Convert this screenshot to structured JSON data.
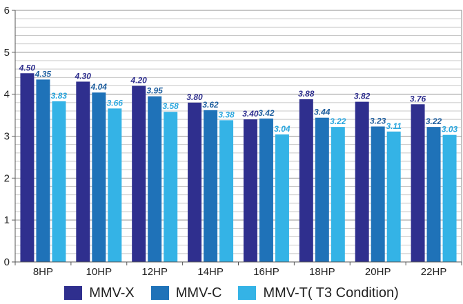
{
  "chart_data": {
    "type": "bar",
    "title": "",
    "xlabel": "",
    "ylabel": "",
    "ylim": [
      0,
      6
    ],
    "yticks": [
      "0",
      "1",
      "2",
      "3",
      "4",
      "5",
      "6"
    ],
    "grid": "horizontal",
    "legend_position": "bottom",
    "categories": [
      "8HP",
      "10HP",
      "12HP",
      "14HP",
      "16HP",
      "18HP",
      "20HP",
      "22HP"
    ],
    "series": [
      {
        "name": "MMV-X",
        "color": "#2f2f8e",
        "label_color": "#2f2f8e",
        "values": [
          4.5,
          4.3,
          4.2,
          3.8,
          3.4,
          3.88,
          3.82,
          3.76
        ],
        "labels": [
          "4.50",
          "4.30",
          "4.20",
          "3.80",
          "3.40",
          "3.88",
          "3.82",
          "3.76"
        ]
      },
      {
        "name": "MMV-C",
        "color": "#1f72b8",
        "label_color": "#1f5f9f",
        "values": [
          4.35,
          4.04,
          3.95,
          3.62,
          3.42,
          3.44,
          3.23,
          3.22
        ],
        "labels": [
          "4.35",
          "4.04",
          "3.95",
          "3.62",
          "3.42",
          "3.44",
          "3.23",
          "3.22"
        ]
      },
      {
        "name": "MMV-T( T3 Condition)",
        "color": "#34b3e6",
        "label_color": "#2aa7df",
        "values": [
          3.83,
          3.66,
          3.58,
          3.38,
          3.04,
          3.22,
          3.11,
          3.03
        ],
        "labels": [
          "3.83",
          "3.66",
          "3.58",
          "3.38",
          "3.04",
          "3.22",
          "3.11",
          "3.03"
        ]
      }
    ]
  }
}
